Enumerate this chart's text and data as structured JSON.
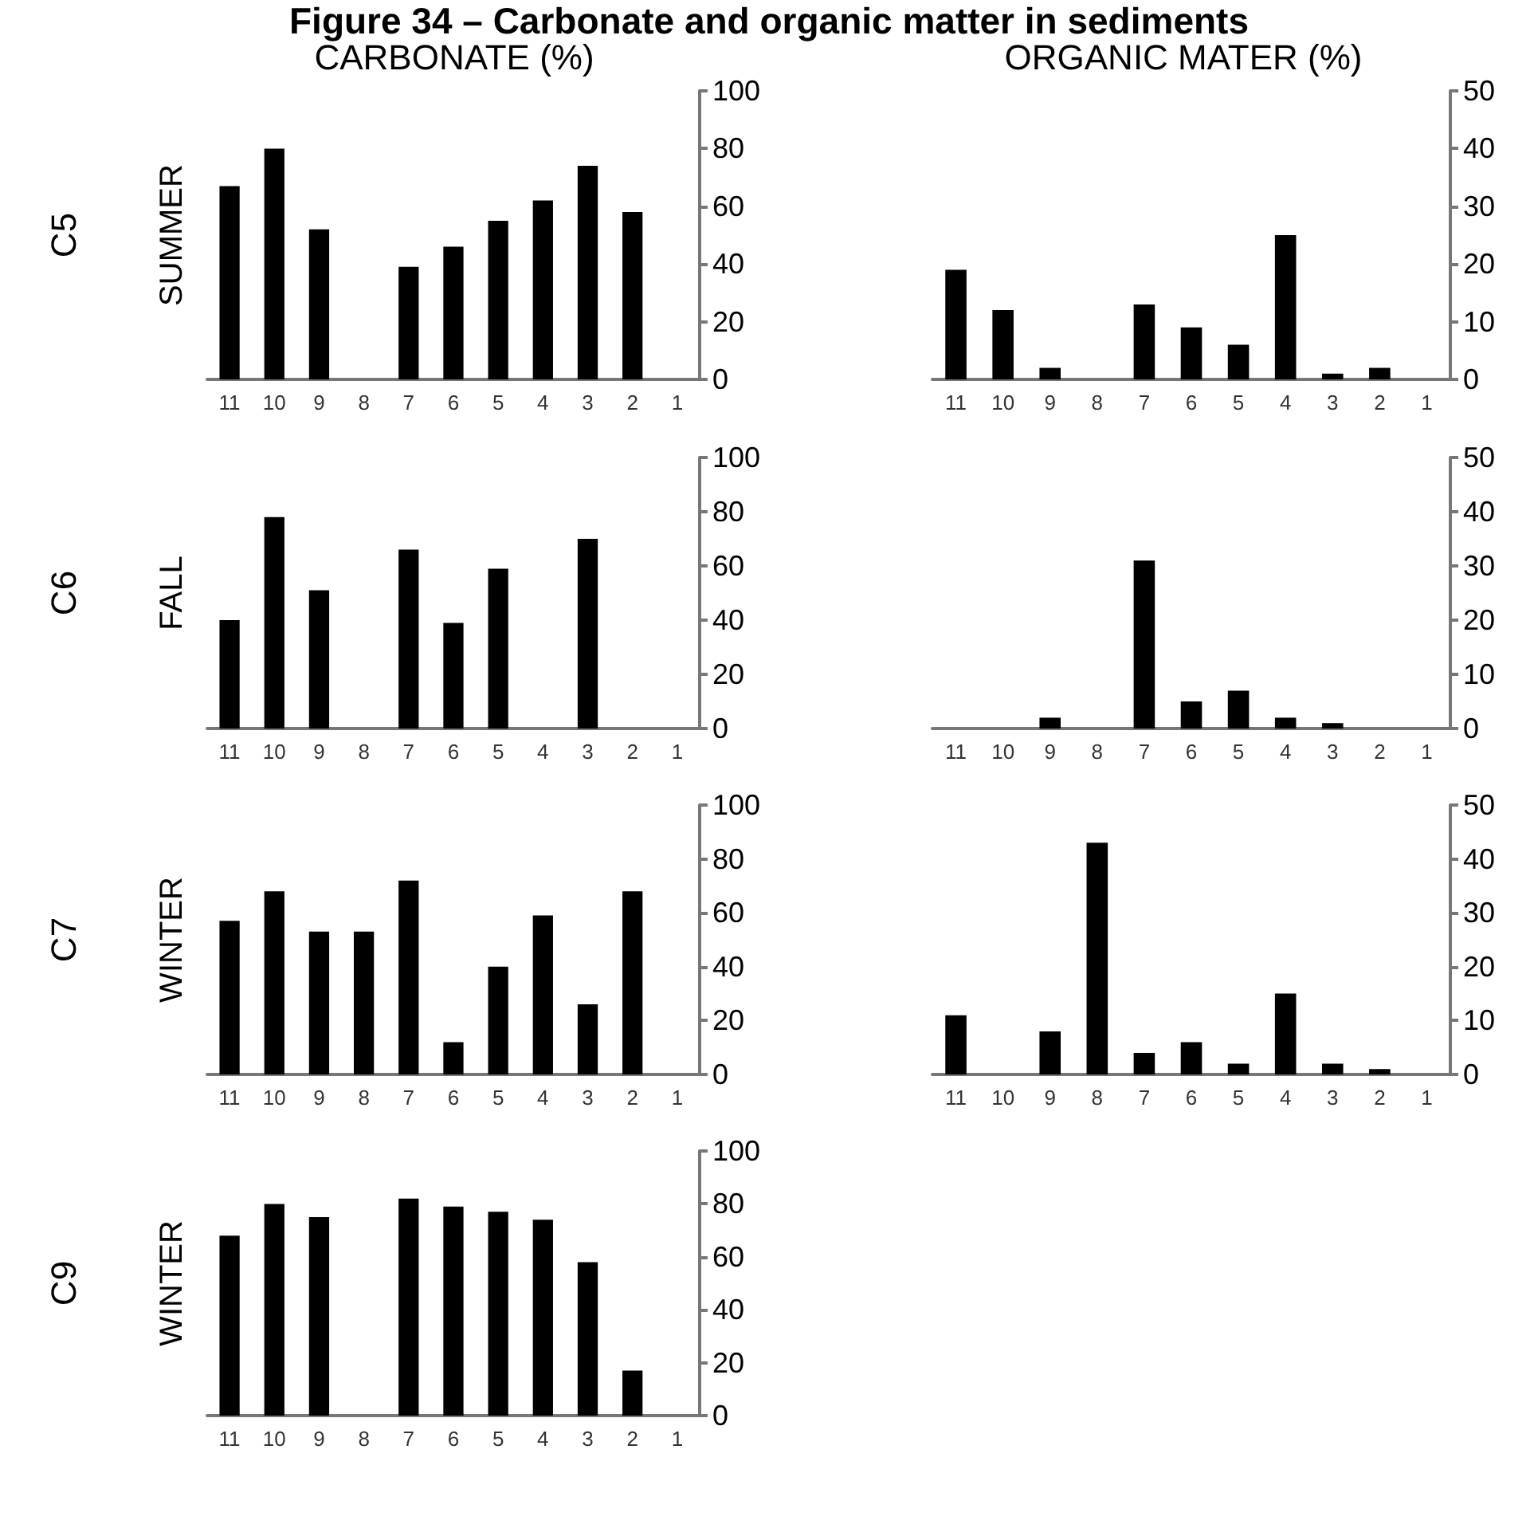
{
  "chart_data": [
    {
      "type": "bar",
      "title": "Figure 34 –  Carbonate and organic matter in sediments",
      "subtitle": "CARBONATE (%)",
      "ylabel": "SUMMER",
      "annotations": [
        "C5"
      ],
      "categories": [
        "11",
        "10",
        "9",
        "8",
        "7",
        "6",
        "5",
        "4",
        "3",
        "2",
        "1"
      ],
      "values": [
        67,
        80,
        52,
        null,
        39,
        46,
        55,
        62,
        74,
        58,
        null
      ],
      "color": "#000000",
      "ylim": [
        0,
        100
      ],
      "yticks": [
        0,
        20,
        40,
        60,
        80,
        100
      ],
      "grid": false
    },
    {
      "type": "bar",
      "title": "ORGANIC MATER (%)",
      "categories": [
        "11",
        "10",
        "9",
        "8",
        "7",
        "6",
        "5",
        "4",
        "3",
        "2",
        "1"
      ],
      "values": [
        19,
        12,
        2,
        null,
        13,
        9,
        6,
        25,
        1,
        2,
        null
      ],
      "color": "#000000",
      "ylim": [
        0,
        50
      ],
      "yticks": [
        0,
        10,
        20,
        30,
        40,
        50
      ],
      "grid": false
    },
    {
      "type": "bar",
      "ylabel": "FALL",
      "annotations": [
        "C6"
      ],
      "categories": [
        "11",
        "10",
        "9",
        "8",
        "7",
        "6",
        "5",
        "4",
        "3",
        "2",
        "1"
      ],
      "values": [
        40,
        78,
        51,
        null,
        66,
        39,
        59,
        null,
        70,
        null,
        null
      ],
      "color": "#000000",
      "ylim": [
        0,
        100
      ],
      "yticks": [
        0,
        20,
        40,
        60,
        80,
        100
      ],
      "grid": false
    },
    {
      "type": "bar",
      "categories": [
        "11",
        "10",
        "9",
        "8",
        "7",
        "6",
        "5",
        "4",
        "3",
        "2",
        "1"
      ],
      "values": [
        null,
        null,
        2,
        null,
        31,
        5,
        7,
        2,
        1,
        null,
        null
      ],
      "color": "#000000",
      "ylim": [
        0,
        50
      ],
      "yticks": [
        0,
        10,
        20,
        30,
        40,
        50
      ],
      "grid": false
    },
    {
      "type": "bar",
      "ylabel": "WINTER",
      "annotations": [
        "C7"
      ],
      "categories": [
        "11",
        "10",
        "9",
        "8",
        "7",
        "6",
        "5",
        "4",
        "3",
        "2",
        "1"
      ],
      "values": [
        57,
        68,
        53,
        53,
        72,
        12,
        40,
        59,
        26,
        68,
        null
      ],
      "color": "#000000",
      "ylim": [
        0,
        100
      ],
      "yticks": [
        0,
        20,
        40,
        60,
        80,
        100
      ],
      "grid": false
    },
    {
      "type": "bar",
      "categories": [
        "11",
        "10",
        "9",
        "8",
        "7",
        "6",
        "5",
        "4",
        "3",
        "2",
        "1"
      ],
      "values": [
        11,
        null,
        8,
        43,
        4,
        6,
        2,
        15,
        2,
        1,
        null
      ],
      "color": "#000000",
      "ylim": [
        0,
        50
      ],
      "yticks": [
        0,
        10,
        20,
        30,
        40,
        50
      ],
      "grid": false
    },
    {
      "type": "bar",
      "ylabel": "WINTER",
      "annotations": [
        "C9"
      ],
      "categories": [
        "11",
        "10",
        "9",
        "8",
        "7",
        "6",
        "5",
        "4",
        "3",
        "2",
        "1"
      ],
      "values": [
        68,
        80,
        75,
        null,
        82,
        79,
        77,
        74,
        58,
        17,
        null
      ],
      "color": "#000000",
      "ylim": [
        0,
        100
      ],
      "yticks": [
        0,
        20,
        40,
        60,
        80,
        100
      ],
      "grid": false
    }
  ]
}
